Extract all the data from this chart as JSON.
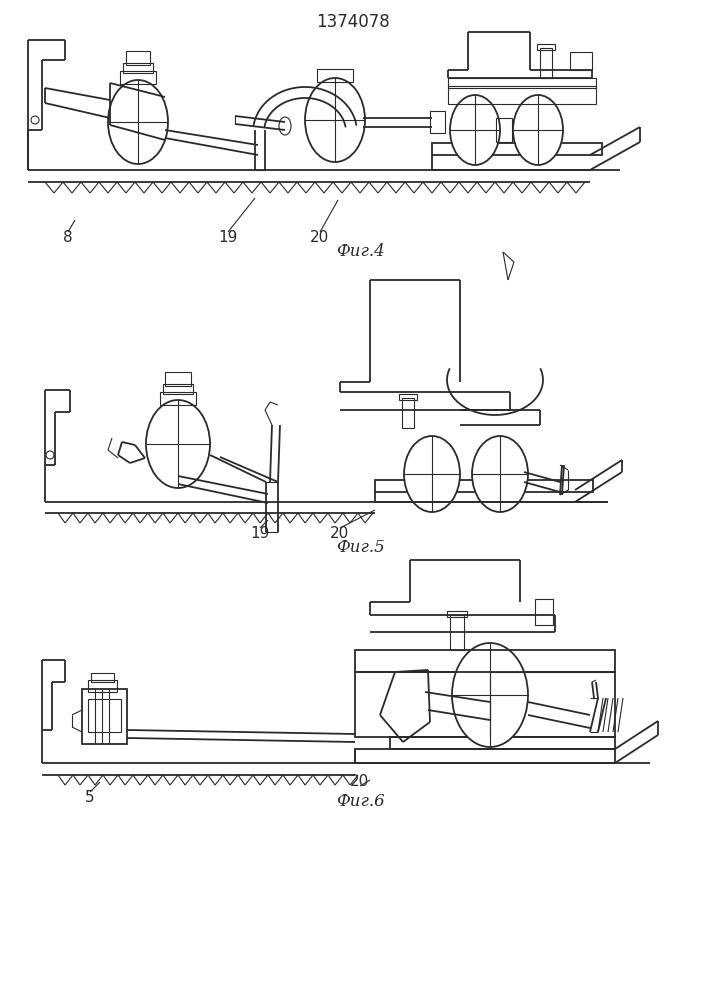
{
  "title": "1374078",
  "fig4_label": "Фиг.4",
  "fig5_label": "Фиг.5",
  "fig6_label": "Фиг.6",
  "label_8": "8",
  "label_19a": "19",
  "label_20a": "20",
  "label_19b": "19",
  "label_20b": "20",
  "label_5": "5",
  "label_20c": "20",
  "line_color": "#2a2a2a",
  "bg_color": "#ffffff",
  "lw": 1.3,
  "lw_thin": 0.8,
  "lw_med": 1.0
}
